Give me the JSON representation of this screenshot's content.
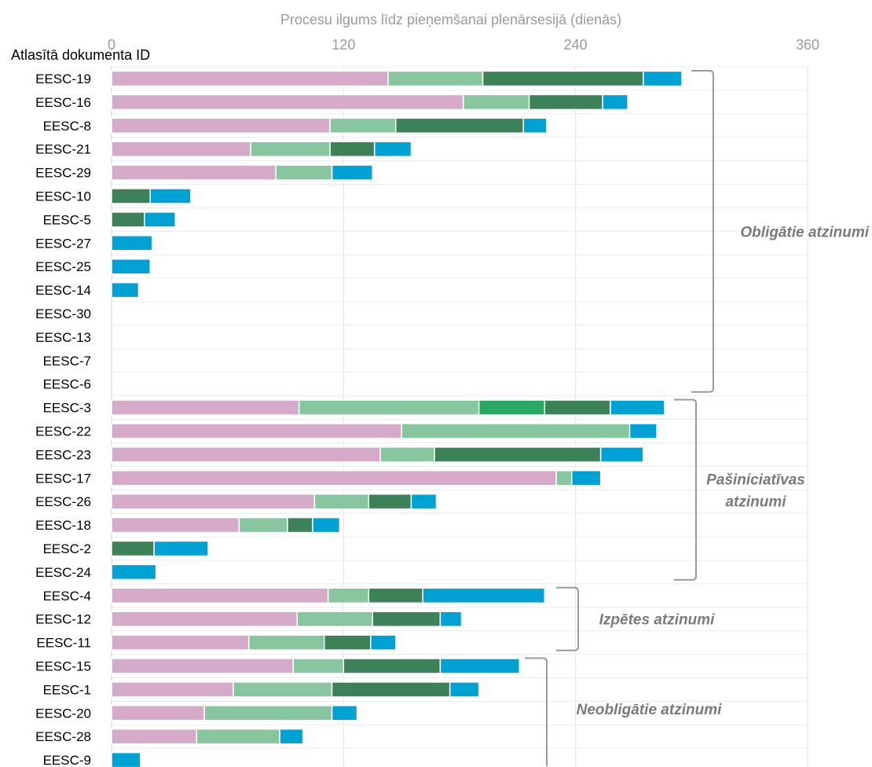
{
  "chart_data": {
    "type": "bar",
    "orientation": "horizontal",
    "stacked": true,
    "xlabel": "Procesu ilgums līdz pieņemšanai plenārsesijā (dienās)",
    "ylabel": "Atlasītā dokumenta ID",
    "xlim": [
      0,
      360
    ],
    "xticks": [
      "0",
      "120",
      "240",
      "360"
    ],
    "x_axis_position": "top",
    "grid": true,
    "categories": [
      "EESC-19",
      "EESC-16",
      "EESC-8",
      "EESC-21",
      "EESC-29",
      "EESC-10",
      "EESC-5",
      "EESC-27",
      "EESC-25",
      "EESC-14",
      "EESC-30",
      "EESC-13",
      "EESC-7",
      "EESC-6",
      "EESC-3",
      "EESC-22",
      "EESC-23",
      "EESC-17",
      "EESC-26",
      "EESC-18",
      "EESC-2",
      "EESC-24",
      "EESC-4",
      "EESC-12",
      "EESC-11",
      "EESC-15",
      "EESC-1",
      "EESC-20",
      "EESC-28",
      "EESC-9"
    ],
    "series": [
      {
        "color": "#d6aac9",
        "values": [
          143,
          182,
          113,
          72,
          85,
          0,
          0,
          0,
          0,
          0,
          0,
          0,
          0,
          0,
          97,
          150,
          139,
          230,
          105,
          66,
          0,
          0,
          112,
          96,
          71,
          94,
          63,
          48,
          44,
          0
        ]
      },
      {
        "color": "#88c6a0",
        "values": [
          49,
          34,
          34,
          41,
          29,
          0,
          0,
          0,
          0,
          0,
          0,
          0,
          0,
          0,
          93,
          118,
          28,
          8,
          28,
          25,
          0,
          0,
          21,
          39,
          39,
          26,
          51,
          66,
          43,
          0
        ]
      },
      {
        "color": "#2aa866",
        "values": [
          0,
          0,
          0,
          0,
          0,
          0,
          0,
          0,
          0,
          0,
          0,
          0,
          0,
          0,
          34,
          0,
          0,
          0,
          0,
          0,
          0,
          0,
          0,
          0,
          0,
          0,
          0,
          0,
          0,
          0
        ]
      },
      {
        "color": "#3d8158",
        "values": [
          83,
          38,
          66,
          23,
          0,
          20,
          17,
          0,
          0,
          0,
          0,
          0,
          0,
          0,
          34,
          0,
          86,
          0,
          22,
          13,
          22,
          0,
          28,
          35,
          24,
          50,
          61,
          0,
          0,
          0
        ]
      },
      {
        "color": "#00a2d3",
        "values": [
          20,
          13,
          12,
          19,
          21,
          21,
          16,
          21,
          20,
          14,
          0,
          0,
          0,
          0,
          28,
          14,
          22,
          15,
          13,
          14,
          28,
          23,
          63,
          11,
          13,
          41,
          15,
          13,
          12,
          15
        ]
      }
    ],
    "groups": [
      {
        "label": "Obligātie atzinumi",
        "from": "EESC-19",
        "to": "EESC-6"
      },
      {
        "label": "Pašiniciatīvas atzinumi",
        "from": "EESC-3",
        "to": "EESC-24"
      },
      {
        "label": "Izpētes atzinumi",
        "from": "EESC-4",
        "to": "EESC-11"
      },
      {
        "label": "Neobligātie atzinumi",
        "from": "EESC-15",
        "to": "EESC-9"
      }
    ]
  }
}
